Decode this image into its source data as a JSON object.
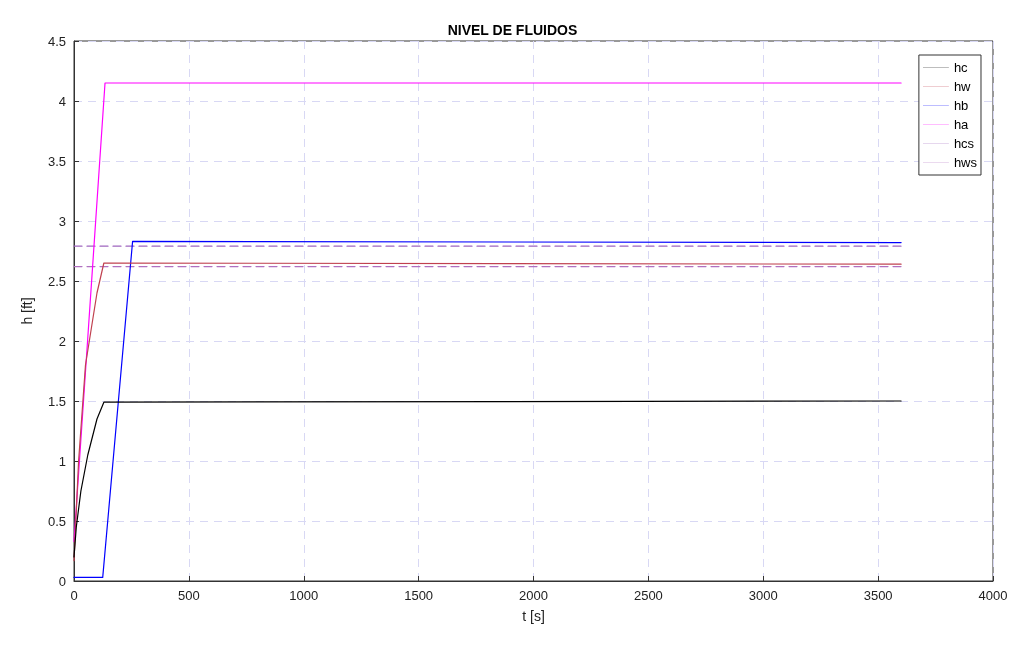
{
  "chart_data": {
    "type": "line",
    "title": "NIVEL DE FLUIDOS",
    "xlabel": "t [s]",
    "ylabel": "h [ft]",
    "xlim": [
      0,
      4000
    ],
    "xticks": [
      0,
      500,
      1000,
      1500,
      2000,
      2500,
      3000,
      3500,
      4000
    ],
    "ylim": [
      0,
      4.5
    ],
    "yticks": [
      0,
      0.5,
      1,
      1.5,
      2,
      2.5,
      3,
      3.5,
      4,
      4.5
    ],
    "grid": true,
    "legend": "top right",
    "marker": "none",
    "series": [
      {
        "name": "hc",
        "color": "#000000",
        "x": [
          0,
          10,
          30,
          60,
          100,
          130,
          3600
        ],
        "values": [
          0.2,
          0.45,
          0.75,
          1.05,
          1.35,
          1.49,
          1.5
        ]
      },
      {
        "name": "hw",
        "color": "#c0404f",
        "x": [
          0,
          20,
          50,
          100,
          130,
          3600
        ],
        "values": [
          0.17,
          1.0,
          1.8,
          2.4,
          2.65,
          2.64
        ]
      },
      {
        "name": "hb",
        "color": "#0000ff",
        "x": [
          0,
          125,
          255,
          3600
        ],
        "values": [
          0.03,
          0.03,
          2.83,
          2.82
        ]
      },
      {
        "name": "ha",
        "color": "#ff00ff",
        "x": [
          0,
          135,
          3600
        ],
        "values": [
          0.33,
          4.15,
          4.15
        ]
      },
      {
        "name": "hcs",
        "color": "#9f66bf",
        "line_style": "dashed",
        "x": [
          0,
          3600
        ],
        "values": [
          2.79,
          2.79
        ]
      },
      {
        "name": "hws",
        "color": "#b070c0",
        "line_style": "dashed",
        "x": [
          0,
          3600
        ],
        "values": [
          2.62,
          2.62
        ]
      }
    ]
  }
}
